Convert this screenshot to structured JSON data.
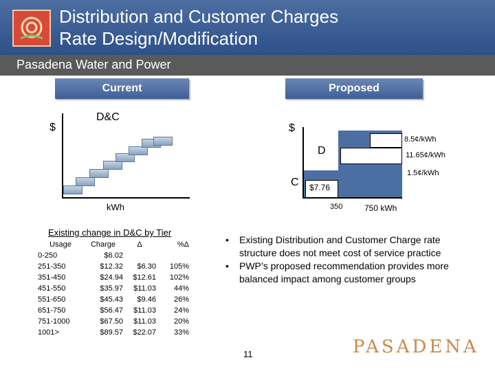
{
  "header": {
    "title_line1": "Distribution and Customer Charges",
    "title_line2": "Rate Design/Modification"
  },
  "subtitle": "Pasadena Water and Power",
  "current": {
    "label": "Current",
    "y_axis": "$",
    "curve_label": "D&C",
    "x_axis": "kWh"
  },
  "proposed": {
    "label": "Proposed",
    "y_axis": "$",
    "d_label": "D",
    "c_label": "C",
    "charge": "$7.76",
    "rate_top": "8.5¢/kWh",
    "rate_mid": "11.65¢/kWh",
    "rate_low": "1.5¢/kWh",
    "tick_350": "350",
    "tick_750": "750 kWh"
  },
  "table": {
    "caption": "Existing change in D&C by Tier",
    "headers": [
      "Usage",
      "Charge",
      "Δ",
      "%Δ"
    ],
    "rows": [
      [
        "0-250",
        "$6.02",
        "",
        ""
      ],
      [
        "251-350",
        "$12.32",
        "$6.30",
        "105%"
      ],
      [
        "351-450",
        "$24.94",
        "$12.61",
        "102%"
      ],
      [
        "451-550",
        "$35.97",
        "$11.03",
        "44%"
      ],
      [
        "551-650",
        "$45.43",
        "$9.46",
        "26%"
      ],
      [
        "651-750",
        "$56.47",
        "$11.03",
        "24%"
      ],
      [
        "751-1000",
        "$67.50",
        "$11.03",
        "20%"
      ],
      [
        "1001>",
        "$89.57",
        "$22.07",
        "33%"
      ]
    ]
  },
  "bullets": [
    "Existing Distribution and Customer Charge rate structure does not meet cost of service practice",
    "PWP’s proposed recommendation provides more balanced impact among customer groups"
  ],
  "page_number": "11",
  "wordmark": "PASADENA"
}
